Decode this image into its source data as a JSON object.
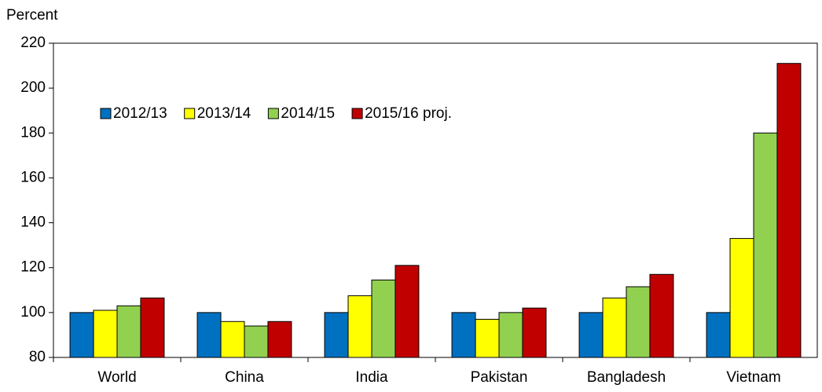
{
  "chart_data": {
    "type": "bar",
    "y_label": "Percent",
    "categories": [
      "World",
      "China",
      "India",
      "Pakistan",
      "Bangladesh",
      "Vietnam"
    ],
    "series": [
      {
        "name": "2012/13",
        "color": "#0070c0",
        "values": [
          100,
          100,
          100,
          100,
          100,
          100
        ]
      },
      {
        "name": "2013/14",
        "color": "#ffff00",
        "values": [
          101,
          96,
          107.5,
          97,
          106.5,
          133
        ]
      },
      {
        "name": "2014/15",
        "color": "#92d050",
        "values": [
          103,
          94,
          114.5,
          100,
          111.5,
          180
        ]
      },
      {
        "name": "2015/16 proj.",
        "color": "#c00000",
        "values": [
          106.5,
          96,
          121,
          102,
          117,
          211
        ]
      }
    ],
    "ylim": [
      80,
      220
    ],
    "yticks": [
      80,
      100,
      120,
      140,
      160,
      180,
      200,
      220
    ],
    "grid": false,
    "legend": "upper left"
  }
}
